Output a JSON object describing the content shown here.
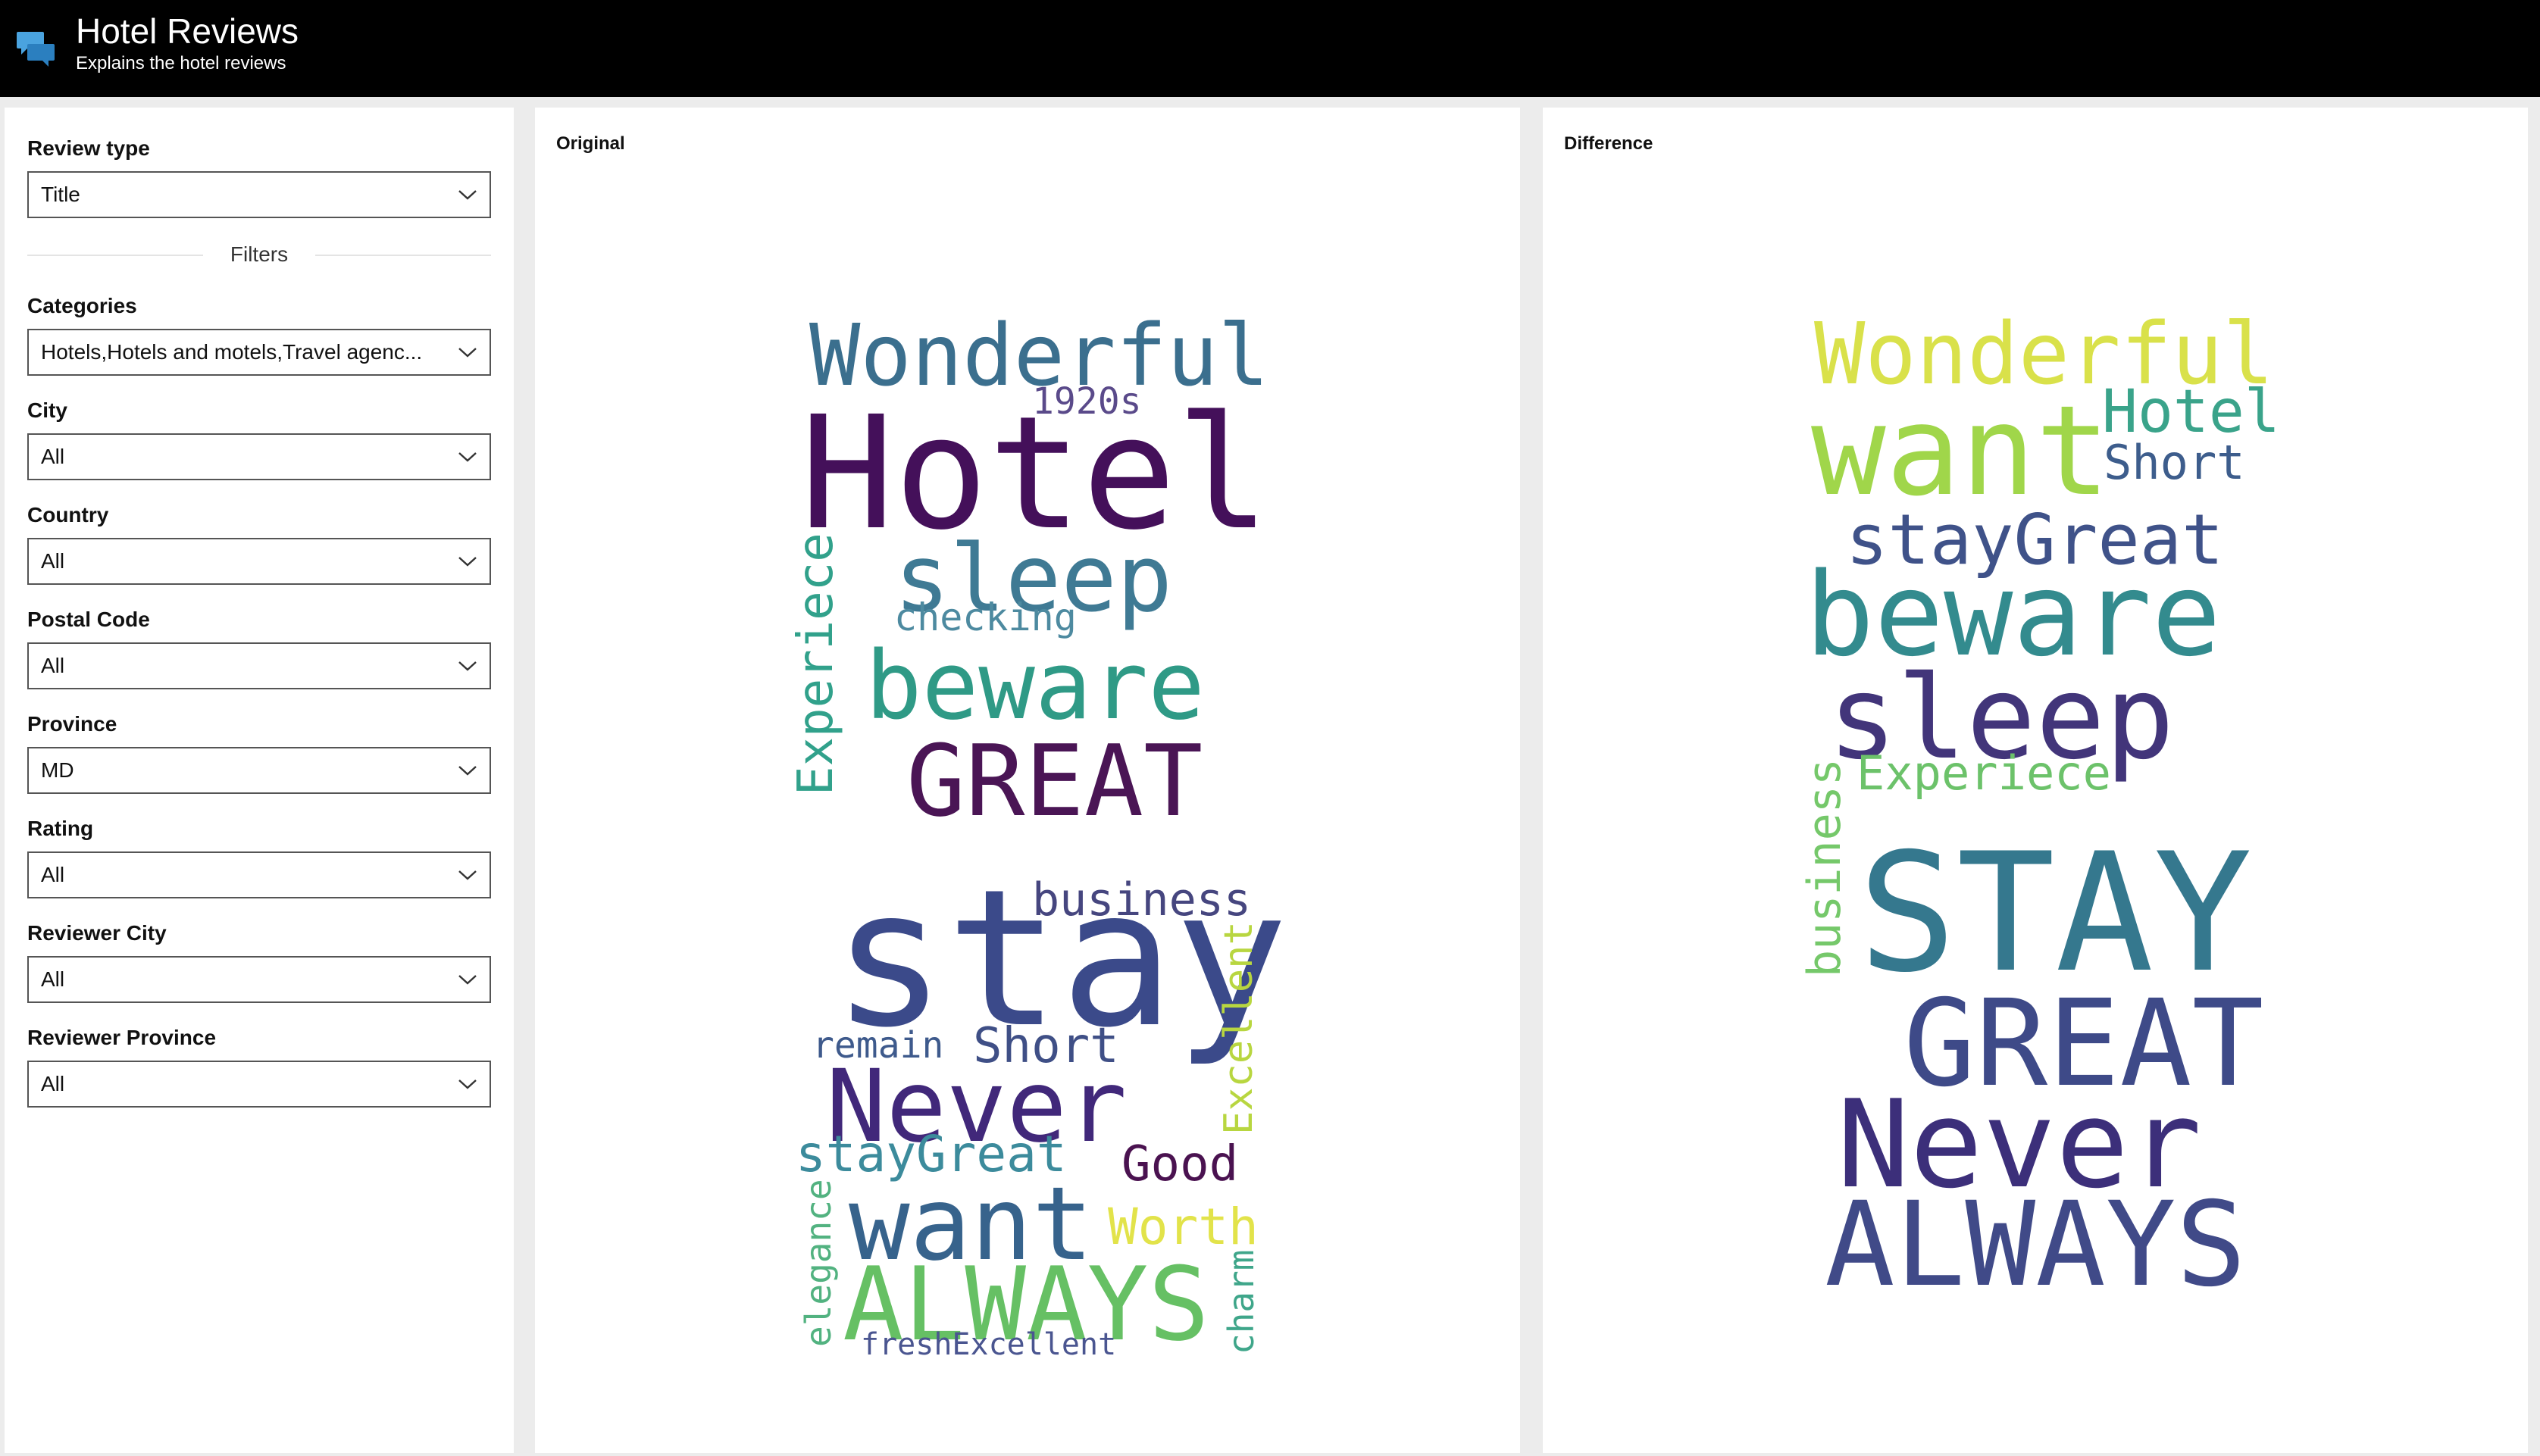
{
  "header": {
    "title": "Hotel Reviews",
    "subtitle": "Explains the hotel reviews",
    "logo_icon": "chat-bubbles-icon",
    "accent": "#4aa3df"
  },
  "sidebar": {
    "review_type": {
      "label": "Review type",
      "value": "Title"
    },
    "filters_divider": "Filters",
    "filters": [
      {
        "label": "Categories",
        "value": "Hotels,Hotels and motels,Travel agenc..."
      },
      {
        "label": "City",
        "value": "All"
      },
      {
        "label": "Country",
        "value": "All"
      },
      {
        "label": "Postal Code",
        "value": "All"
      },
      {
        "label": "Province",
        "value": "MD"
      },
      {
        "label": "Rating",
        "value": "All"
      },
      {
        "label": "Reviewer City",
        "value": "All"
      },
      {
        "label": "Reviewer Province",
        "value": "All"
      }
    ]
  },
  "panels": {
    "original": {
      "title": "Original"
    },
    "difference": {
      "title": "Difference"
    }
  },
  "wordclouds": {
    "original": [
      {
        "text": "Wonderful",
        "color": "#3b6f8e"
      },
      {
        "text": "1920s",
        "color": "#5a4a8a"
      },
      {
        "text": "Hotel",
        "color": "#44105a"
      },
      {
        "text": "sleep",
        "color": "#3f7a94"
      },
      {
        "text": "Experiece",
        "color": "#31a18b"
      },
      {
        "text": "checking",
        "color": "#4d8aa0"
      },
      {
        "text": "beware",
        "color": "#2f9a86"
      },
      {
        "text": "GREAT",
        "color": "#4a1555"
      },
      {
        "text": "business",
        "color": "#46467f"
      },
      {
        "text": "stay",
        "color": "#3b4a8a"
      },
      {
        "text": "Excellent",
        "color": "#b8d640"
      },
      {
        "text": "remain",
        "color": "#3e5a8c"
      },
      {
        "text": "Short",
        "color": "#3f4f86"
      },
      {
        "text": "Never",
        "color": "#41287a"
      },
      {
        "text": "stayGreat",
        "color": "#3c8b9c"
      },
      {
        "text": "Good",
        "color": "#4a1250"
      },
      {
        "text": "elegance",
        "color": "#52b280"
      },
      {
        "text": "want",
        "color": "#37638c"
      },
      {
        "text": "Worth",
        "color": "#e2e34a"
      },
      {
        "text": "ALWAYS",
        "color": "#66c064"
      },
      {
        "text": "charm",
        "color": "#3fa68a"
      },
      {
        "text": "freshExcellent",
        "color": "#4a5590"
      }
    ],
    "difference": [
      {
        "text": "Wonderful",
        "color": "#d9e14a"
      },
      {
        "text": "want",
        "color": "#a0d64a"
      },
      {
        "text": "Hotel",
        "color": "#3aa38a"
      },
      {
        "text": "Short",
        "color": "#3d5d8c"
      },
      {
        "text": "stayGreat",
        "color": "#3f5289"
      },
      {
        "text": "beware",
        "color": "#338b8e"
      },
      {
        "text": "sleep",
        "color": "#42357a"
      },
      {
        "text": "Experiece",
        "color": "#6cc26a"
      },
      {
        "text": "business",
        "color": "#75c86a"
      },
      {
        "text": "STAY",
        "color": "#35788e"
      },
      {
        "text": "GREAT",
        "color": "#3e4a88"
      },
      {
        "text": "Never",
        "color": "#3c2f7a"
      },
      {
        "text": "ALWAYS",
        "color": "#404a88"
      }
    ]
  }
}
